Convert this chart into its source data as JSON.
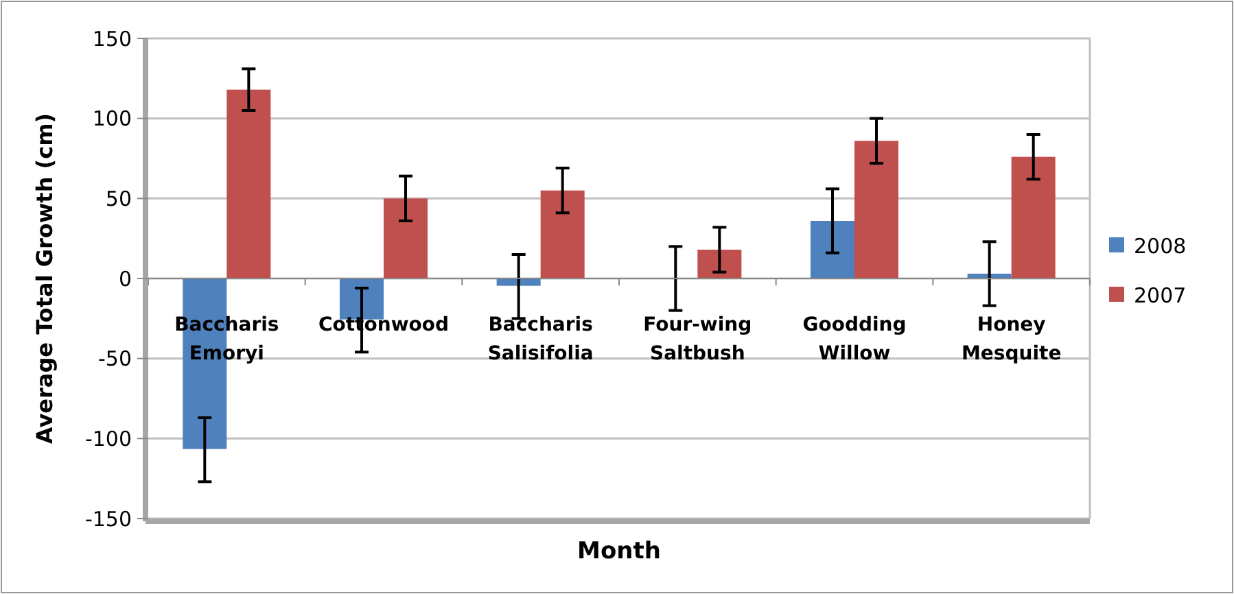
{
  "chart_data": {
    "type": "bar",
    "xlabel": "Month",
    "ylabel": "Average Total Growth (cm)",
    "categories": [
      "Baccharis Emoryi",
      "Cottonwood",
      "Baccharis Salisifolia",
      "Four-wing Saltbush",
      "Goodding Willow",
      "Honey Mesquite"
    ],
    "series": [
      {
        "name": "2008",
        "color": "#4f81bd",
        "values": [
          -107,
          -26,
          -5,
          0,
          36,
          3
        ],
        "errors": [
          20,
          20,
          20,
          20,
          20,
          20
        ]
      },
      {
        "name": "2007",
        "color": "#c0504d",
        "values": [
          118,
          50,
          55,
          18,
          86,
          76
        ],
        "errors": [
          13,
          14,
          14,
          14,
          14,
          14
        ]
      }
    ],
    "ylim": [
      -150,
      150
    ],
    "yticks": [
      -150,
      -100,
      -50,
      0,
      50,
      100,
      150
    ],
    "grid": "y",
    "legend": "right"
  }
}
